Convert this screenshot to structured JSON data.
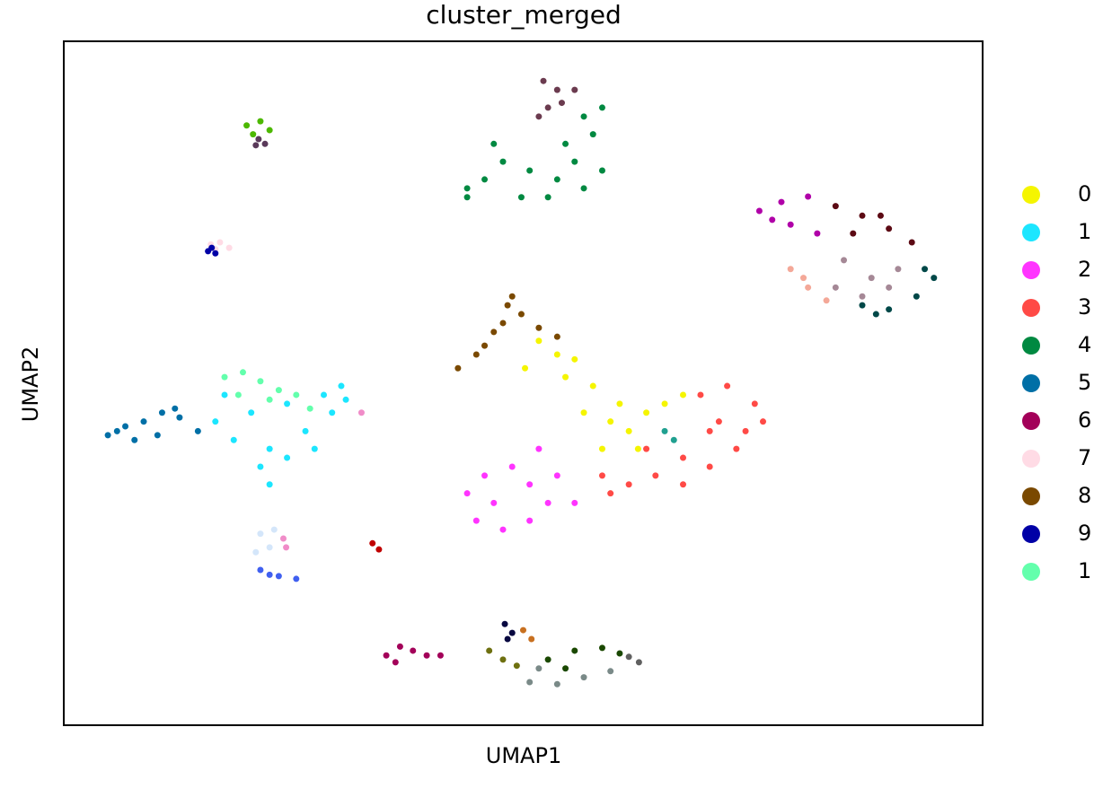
{
  "chart_data": {
    "type": "scatter",
    "title": "cluster_merged",
    "x_label": "UMAP1",
    "y_label": "UMAP2",
    "xlim": [
      0,
      100
    ],
    "ylim": [
      0,
      100
    ],
    "grid": false,
    "legend": "right",
    "series": [
      {
        "name": "0",
        "color": "#f5f500",
        "x": [
          53.7,
          51.7,
          55.6,
          57.6,
          60.5,
          63.4,
          61.5,
          59.5,
          65.4,
          67.4,
          56.6,
          58.6,
          62.5,
          50.2,
          54.6
        ],
        "y": [
          54.2,
          56.2,
          53.5,
          49.6,
          47.0,
          45.7,
          43.0,
          44.4,
          47.0,
          48.3,
          45.7,
          40.4,
          40.4,
          52.2,
          50.9
        ]
      },
      {
        "name": "1",
        "color": "#1ce6ff",
        "x": [
          17.5,
          20.4,
          24.3,
          28.3,
          30.2,
          18.5,
          22.4,
          26.3,
          29.2,
          21.4,
          24.3,
          16.5,
          27.3,
          30.7,
          22.4
        ],
        "y": [
          48.3,
          45.7,
          47.0,
          48.3,
          49.6,
          41.7,
          40.4,
          43.0,
          45.7,
          37.8,
          39.1,
          44.4,
          40.4,
          47.6,
          35.2
        ]
      },
      {
        "name": "2",
        "color": "#ff34ff",
        "x": [
          43.9,
          45.8,
          48.8,
          50.7,
          52.7,
          44.9,
          47.8,
          50.7,
          46.8,
          53.7,
          55.6,
          51.7
        ],
        "y": [
          33.9,
          36.5,
          37.8,
          35.2,
          32.5,
          29.9,
          28.6,
          29.9,
          32.5,
          36.5,
          32.5,
          40.4
        ]
      },
      {
        "name": "3",
        "color": "#ff4a46",
        "x": [
          69.3,
          72.2,
          75.2,
          76.1,
          73.2,
          70.3,
          67.4,
          64.4,
          61.5,
          59.5,
          63.4,
          71.3,
          74.2,
          67.4,
          58.6,
          70.3
        ],
        "y": [
          48.3,
          49.6,
          47.0,
          44.4,
          40.4,
          37.8,
          39.1,
          36.5,
          35.2,
          33.9,
          40.4,
          44.4,
          43.0,
          35.2,
          36.5,
          43.0
        ]
      },
      {
        "name": "4",
        "color": "#008941",
        "x": [
          43.9,
          45.8,
          47.8,
          50.7,
          53.7,
          56.6,
          58.6,
          57.6,
          58.6,
          56.6,
          54.6,
          49.8,
          52.7,
          46.8,
          55.6,
          43.9
        ],
        "y": [
          77.2,
          79.8,
          82.4,
          81.1,
          79.8,
          78.5,
          81.1,
          86.4,
          90.3,
          89.0,
          85.0,
          77.2,
          77.2,
          85.0,
          82.4,
          78.5
        ]
      },
      {
        "name": "5",
        "color": "#006fa6",
        "x": [
          4.8,
          6.7,
          8.7,
          10.7,
          12.6,
          7.7,
          10.2,
          14.6,
          5.8,
          12.1
        ],
        "y": [
          42.4,
          43.7,
          44.4,
          45.7,
          45.0,
          41.7,
          42.4,
          43.0,
          43.0,
          46.3
        ]
      },
      {
        "name": "6",
        "color": "#a30059",
        "x": [
          35.1,
          36.6,
          38.0,
          39.5,
          41.0,
          36.1
        ],
        "y": [
          10.2,
          11.5,
          10.9,
          10.2,
          10.2,
          9.2
        ]
      },
      {
        "name": "7",
        "color": "#ffdbe5",
        "x": [
          16.0,
          17.0,
          18.0,
          16.5
        ],
        "y": [
          70.3,
          70.6,
          69.8,
          69.6
        ]
      },
      {
        "name": "8",
        "color": "#7a4900",
        "x": [
          42.9,
          44.9,
          46.8,
          48.3,
          48.8,
          49.8,
          51.7,
          53.7,
          45.8,
          47.8
        ],
        "y": [
          52.2,
          54.2,
          57.5,
          61.4,
          62.7,
          60.1,
          58.1,
          56.8,
          55.5,
          58.8
        ]
      },
      {
        "name": "9",
        "color": "#0000a6",
        "x": [
          15.7,
          16.5,
          16.1
        ],
        "y": [
          69.3,
          69.0,
          69.8
        ]
      },
      {
        "name": "1",
        "color": "#63ffac",
        "x": [
          17.5,
          19.5,
          21.4,
          23.4,
          25.3,
          19.0,
          22.4,
          26.8
        ],
        "y": [
          50.9,
          51.6,
          50.3,
          49.0,
          48.3,
          48.3,
          47.6,
          46.3
        ]
      },
      {
        "color": "#6b3b4f",
        "x": [
          52.2,
          53.7,
          55.6,
          52.7,
          54.2,
          51.7
        ],
        "y": [
          94.2,
          92.9,
          92.9,
          90.3,
          91.0,
          89.0
        ]
      },
      {
        "color": "#4cb800",
        "x": [
          19.9,
          21.4,
          22.4,
          20.6
        ],
        "y": [
          87.7,
          88.3,
          87.0,
          86.4
        ]
      },
      {
        "color": "#5a3a5a",
        "x": [
          21.2,
          21.9,
          20.9
        ],
        "y": [
          85.7,
          85.0,
          84.8
        ]
      },
      {
        "color": "#b000a8",
        "x": [
          75.7,
          78.1,
          81.0,
          79.1,
          82.0,
          77.1
        ],
        "y": [
          75.2,
          76.5,
          77.3,
          73.2,
          71.9,
          73.9
        ]
      },
      {
        "color": "#5c0a14",
        "x": [
          84.0,
          86.9,
          89.8,
          92.3,
          85.9,
          88.9
        ],
        "y": [
          75.9,
          74.5,
          72.6,
          70.6,
          71.9,
          74.5
        ]
      },
      {
        "color": "#a58896",
        "x": [
          84.9,
          87.9,
          90.8,
          86.9,
          89.8,
          84.0
        ],
        "y": [
          68.0,
          65.4,
          66.7,
          62.7,
          64.0,
          64.0
        ]
      },
      {
        "color": "#004848",
        "x": [
          86.9,
          89.8,
          92.8,
          94.7,
          93.7,
          88.4
        ],
        "y": [
          61.4,
          60.8,
          62.7,
          65.4,
          66.7,
          60.1
        ]
      },
      {
        "color": "#f4a898",
        "x": [
          79.1,
          81.0,
          83.0,
          80.5
        ],
        "y": [
          66.7,
          64.0,
          62.1,
          65.4
        ]
      },
      {
        "color": "#d4e6fa",
        "x": [
          21.4,
          22.4,
          20.9,
          22.9
        ],
        "y": [
          28.0,
          26.0,
          25.3,
          28.6
        ]
      },
      {
        "color": "#4060f0",
        "x": [
          21.4,
          23.4,
          25.3,
          22.4
        ],
        "y": [
          22.7,
          21.8,
          21.4,
          22.0
        ]
      },
      {
        "color": "#f08cc8",
        "x": [
          23.9,
          24.2,
          32.4
        ],
        "y": [
          27.3,
          26.0,
          45.7
        ]
      },
      {
        "color": "#c00000",
        "x": [
          33.6,
          34.3
        ],
        "y": [
          26.6,
          25.7
        ]
      },
      {
        "color": "#080840",
        "x": [
          48.0,
          48.8,
          48.3
        ],
        "y": [
          14.8,
          13.5,
          12.6
        ]
      },
      {
        "color": "#c87020",
        "x": [
          50.0,
          50.9
        ],
        "y": [
          13.9,
          12.6
        ]
      },
      {
        "color": "#6e7010",
        "x": [
          46.3,
          47.8,
          49.3
        ],
        "y": [
          10.9,
          9.6,
          8.7
        ]
      },
      {
        "color": "#1a4800",
        "x": [
          52.7,
          55.6,
          58.6,
          60.5,
          54.6
        ],
        "y": [
          9.6,
          10.9,
          11.3,
          10.5,
          8.3
        ]
      },
      {
        "color": "#7a8a88",
        "x": [
          50.7,
          53.7,
          56.6,
          59.5,
          51.7
        ],
        "y": [
          6.3,
          6.0,
          7.0,
          7.9,
          8.3
        ]
      },
      {
        "color": "#606060",
        "x": [
          61.5,
          62.6
        ],
        "y": [
          10.0,
          9.2
        ]
      },
      {
        "color": "#20a090",
        "x": [
          65.4,
          66.4
        ],
        "y": [
          43.0,
          41.7
        ]
      }
    ]
  }
}
